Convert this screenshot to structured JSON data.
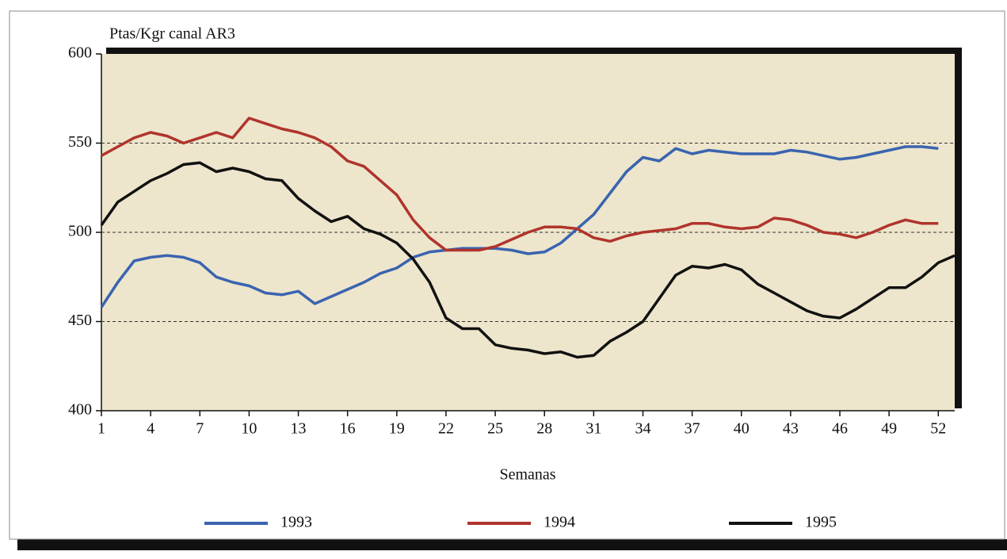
{
  "chart_data": {
    "type": "line",
    "y_label": "Ptas/Kgr canal AR3",
    "x_label": "Semanas",
    "x": [
      1,
      2,
      3,
      4,
      5,
      6,
      7,
      8,
      9,
      10,
      11,
      12,
      13,
      14,
      15,
      16,
      17,
      18,
      19,
      20,
      21,
      22,
      23,
      24,
      25,
      26,
      27,
      28,
      29,
      30,
      31,
      32,
      33,
      34,
      35,
      36,
      37,
      38,
      39,
      40,
      41,
      42,
      43,
      44,
      45,
      46,
      47,
      48,
      49,
      50,
      51,
      52,
      53
    ],
    "series": [
      {
        "name": "1993",
        "color": "#3a64b0",
        "values": [
          458,
          472,
          484,
          486,
          487,
          486,
          483,
          475,
          472,
          470,
          466,
          465,
          467,
          460,
          464,
          468,
          472,
          477,
          480,
          486,
          489,
          490,
          491,
          491,
          491,
          490,
          488,
          489,
          494,
          502,
          510,
          522,
          534,
          542,
          540,
          547,
          544,
          546,
          545,
          544,
          544,
          544,
          546,
          545,
          543,
          541,
          542,
          544,
          546,
          548,
          548,
          547,
          null
        ]
      },
      {
        "name": "1994",
        "color": "#b0342c",
        "values": [
          543,
          548,
          553,
          556,
          554,
          550,
          553,
          556,
          553,
          564,
          561,
          558,
          556,
          553,
          548,
          540,
          537,
          529,
          521,
          507,
          497,
          490,
          490,
          490,
          492,
          496,
          500,
          503,
          503,
          502,
          497,
          495,
          498,
          500,
          501,
          502,
          505,
          505,
          503,
          502,
          503,
          508,
          507,
          504,
          500,
          499,
          497,
          500,
          504,
          507,
          505,
          505,
          null
        ]
      },
      {
        "name": "1995",
        "color": "#111111",
        "values": [
          504,
          517,
          523,
          529,
          533,
          538,
          539,
          534,
          536,
          534,
          530,
          529,
          519,
          512,
          506,
          509,
          502,
          499,
          494,
          485,
          472,
          452,
          446,
          446,
          437,
          435,
          434,
          432,
          433,
          430,
          431,
          439,
          444,
          450,
          463,
          476,
          481,
          480,
          482,
          479,
          471,
          466,
          461,
          456,
          453,
          452,
          457,
          463,
          469,
          469,
          475,
          483,
          487
        ]
      }
    ],
    "xlim": [
      1,
      53
    ],
    "xticks": [
      1,
      4,
      7,
      10,
      13,
      16,
      19,
      22,
      25,
      28,
      31,
      34,
      37,
      40,
      43,
      46,
      49,
      52
    ],
    "ylim": [
      400,
      600
    ],
    "yticks": [
      400,
      450,
      500,
      550,
      600
    ],
    "grid": true,
    "legend": "bottom"
  }
}
